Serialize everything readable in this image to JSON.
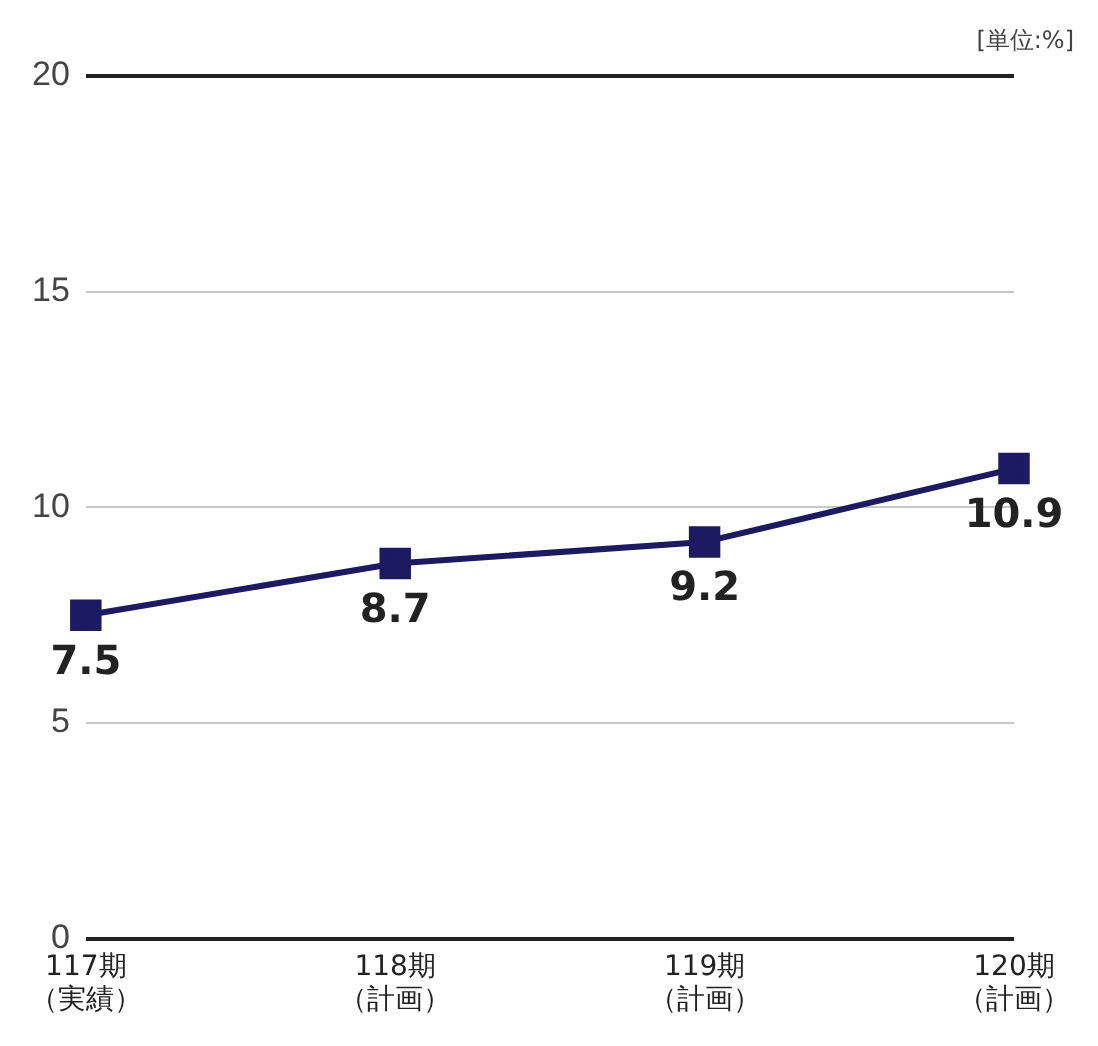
{
  "chart_data": {
    "type": "line",
    "categories": [
      "117期（実績）",
      "118期（計画）",
      "119期（計画）",
      "120期（計画）"
    ],
    "series": [
      {
        "color": "#1c1a60",
        "values": [
          7.5,
          8.7,
          9.2,
          10.9
        ]
      }
    ],
    "ylim": [
      0,
      20
    ],
    "yticks": [
      0,
      5,
      10,
      15,
      20
    ],
    "grid": "y",
    "legend": false,
    "marker": "square",
    "line_style": "solid",
    "data_labels": true,
    "annotations": [
      "[単位:%]"
    ]
  }
}
